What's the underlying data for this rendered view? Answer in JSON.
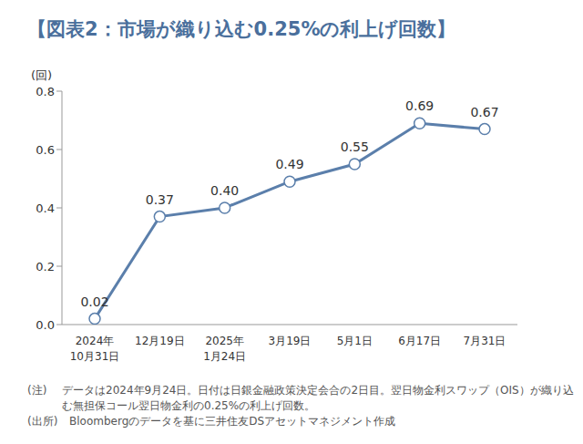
{
  "chart_data": {
    "type": "line",
    "title": "【図表2：市場が織り込む0.25%の利上げ回数】",
    "y_label": "(回)",
    "categories": [
      "2024年10月31日",
      "12月19日",
      "2025年1月24日",
      "3月19日",
      "5月1日",
      "6月17日",
      "7月31日"
    ],
    "values": [
      0.02,
      0.37,
      0.4,
      0.49,
      0.55,
      0.69,
      0.67
    ],
    "value_labels": [
      "0.02",
      "0.37",
      "0.40",
      "0.49",
      "0.55",
      "0.69",
      "0.67"
    ],
    "color": "#5b7fab",
    "marker": "circle",
    "line_style": "solid",
    "data_labels": true,
    "grid": false,
    "ylim": [
      0,
      0.8
    ],
    "yticks": [
      {
        "value": 0,
        "label": "0.0"
      },
      {
        "value": 0.2,
        "label": "0.2"
      },
      {
        "value": 0.4,
        "label": "0.4"
      },
      {
        "value": 0.6,
        "label": "0.6"
      },
      {
        "value": 0.8,
        "label": "0.8"
      }
    ],
    "annotations": [
      {
        "label": "(注)",
        "text": "データは2024年9月24日。日付は日銀金融政策決定会合の2日目。翌日物金利スワップ（OIS）が織り込む無担保コール翌日物金利の0.25%の利上げ回数。"
      },
      {
        "label": "(出所)",
        "text": "Bloombergのデータを基に三井住友DSアセットマネジメント作成"
      }
    ]
  }
}
